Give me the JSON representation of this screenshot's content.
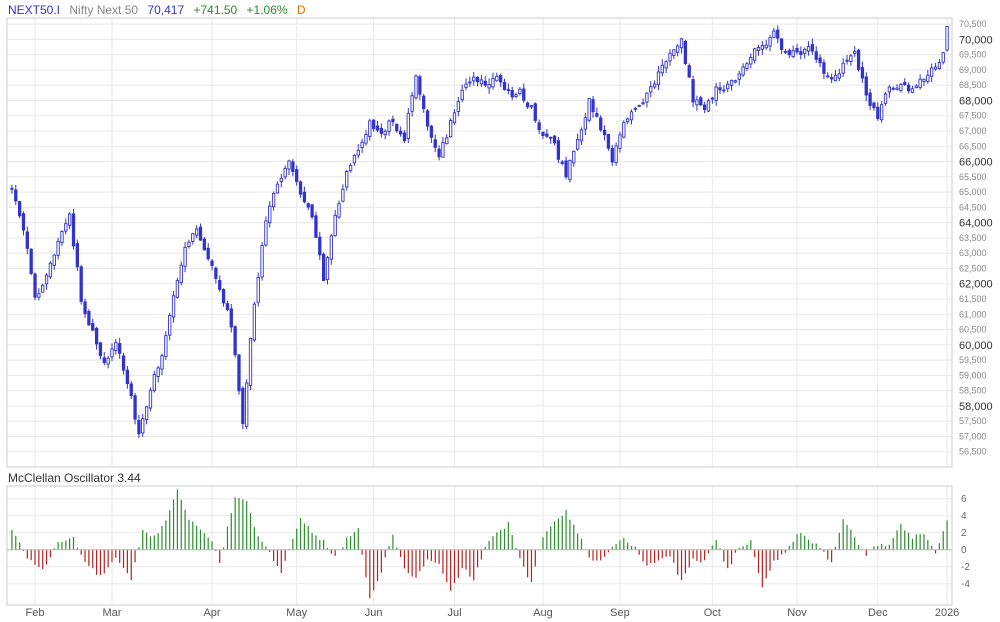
{
  "header": {
    "symbol": "NEXT50.I",
    "name": "Nifty Next 50",
    "last": "70,417",
    "change": "+741.50",
    "change_pct": "+1.06%",
    "period": "D"
  },
  "indicator": {
    "label": "McClellan Oscillator 3.44"
  },
  "colors": {
    "candle": "#3333cc",
    "positive": "#2e8b2e",
    "negative": "#b22222",
    "grid": "#e8e8e8",
    "axis_text": "#666666",
    "symbol": "#3333cc",
    "change": "#2e8b2e",
    "period": "#e07000"
  },
  "chart_data": [
    {
      "type": "candlestick",
      "ylim": [
        56000,
        70700
      ],
      "y_ticks_major": [
        58000,
        60000,
        62000,
        64000,
        66000,
        68000,
        70000
      ],
      "y_ticks_minor": [
        56500,
        57000,
        57500,
        58500,
        59000,
        59500,
        60500,
        61000,
        61500,
        62500,
        63000,
        63500,
        64500,
        65000,
        65500,
        66500,
        67000,
        67500,
        68500,
        69000,
        69500,
        70500
      ],
      "x_labels": [
        "Feb",
        "Mar",
        "Apr",
        "May",
        "Jun",
        "Jul",
        "Aug",
        "Sep",
        "Oct",
        "Nov",
        "Dec",
        "2026"
      ],
      "close_path": [
        [
          0,
          65200
        ],
        [
          3,
          63800
        ],
        [
          6,
          61500
        ],
        [
          9,
          62300
        ],
        [
          12,
          63400
        ],
        [
          15,
          64300
        ],
        [
          18,
          61500
        ],
        [
          21,
          60400
        ],
        [
          24,
          59300
        ],
        [
          27,
          60100
        ],
        [
          30,
          58800
        ],
        [
          33,
          57100
        ],
        [
          36,
          58600
        ],
        [
          39,
          59700
        ],
        [
          42,
          61600
        ],
        [
          45,
          63300
        ],
        [
          48,
          63800
        ],
        [
          51,
          62900
        ],
        [
          54,
          61900
        ],
        [
          57,
          60600
        ],
        [
          60,
          57500
        ],
        [
          63,
          61400
        ],
        [
          66,
          64000
        ],
        [
          69,
          65300
        ],
        [
          72,
          66000
        ],
        [
          75,
          64900
        ],
        [
          78,
          64300
        ],
        [
          81,
          62100
        ],
        [
          84,
          64200
        ],
        [
          87,
          65700
        ],
        [
          90,
          66400
        ],
        [
          93,
          67300
        ],
        [
          96,
          67000
        ],
        [
          99,
          67300
        ],
        [
          102,
          66800
        ],
        [
          105,
          68900
        ],
        [
          108,
          67100
        ],
        [
          111,
          66100
        ],
        [
          114,
          67300
        ],
        [
          117,
          68400
        ],
        [
          120,
          68800
        ],
        [
          123,
          68500
        ],
        [
          126,
          68700
        ],
        [
          129,
          68200
        ],
        [
          132,
          68300
        ],
        [
          135,
          67700
        ],
        [
          138,
          66900
        ],
        [
          141,
          66500
        ],
        [
          144,
          65600
        ],
        [
          147,
          66600
        ],
        [
          150,
          68000
        ],
        [
          153,
          67100
        ],
        [
          156,
          66100
        ],
        [
          159,
          67200
        ],
        [
          162,
          67700
        ],
        [
          165,
          68200
        ],
        [
          168,
          68900
        ],
        [
          171,
          69600
        ],
        [
          174,
          70000
        ],
        [
          177,
          68000
        ],
        [
          180,
          67800
        ],
        [
          183,
          68400
        ],
        [
          186,
          68500
        ],
        [
          189,
          68800
        ],
        [
          192,
          69500
        ],
        [
          195,
          69800
        ],
        [
          198,
          70200
        ],
        [
          201,
          69500
        ],
        [
          204,
          69600
        ],
        [
          207,
          69700
        ],
        [
          210,
          69200
        ],
        [
          213,
          68600
        ],
        [
          216,
          69100
        ],
        [
          219,
          69600
        ],
        [
          222,
          68200
        ],
        [
          225,
          67500
        ],
        [
          228,
          68400
        ],
        [
          231,
          68600
        ],
        [
          234,
          68300
        ],
        [
          237,
          68800
        ],
        [
          240,
          69100
        ],
        [
          243,
          69600
        ]
      ],
      "last_bar": {
        "open": 69650,
        "high": 70430,
        "low": 69600,
        "close": 70417
      }
    },
    {
      "type": "bar",
      "title": "McClellan Oscillator",
      "ylim": [
        -6.5,
        7.5
      ],
      "y_ticks": [
        -4,
        -2,
        0,
        2,
        4,
        6
      ],
      "value_path": [
        [
          0,
          2.3
        ],
        [
          4,
          -0.9
        ],
        [
          8,
          -2.4
        ],
        [
          12,
          0.8
        ],
        [
          16,
          1.4
        ],
        [
          19,
          -1.5
        ],
        [
          23,
          -3.2
        ],
        [
          27,
          -1.0
        ],
        [
          31,
          -3.6
        ],
        [
          34,
          2.2
        ],
        [
          37,
          1.5
        ],
        [
          40,
          3.5
        ],
        [
          43,
          7.2
        ],
        [
          46,
          3.5
        ],
        [
          49,
          2.3
        ],
        [
          52,
          1.2
        ],
        [
          54,
          -1.8
        ],
        [
          56,
          2.8
        ],
        [
          58,
          6.2
        ],
        [
          61,
          5.5
        ],
        [
          64,
          1.5
        ],
        [
          67,
          -0.5
        ],
        [
          70,
          -2.5
        ],
        [
          72,
          0.3
        ],
        [
          75,
          3.6
        ],
        [
          78,
          2.2
        ],
        [
          81,
          1.0
        ],
        [
          84,
          -0.9
        ],
        [
          87,
          1.2
        ],
        [
          90,
          2.3
        ],
        [
          93,
          -5.8
        ],
        [
          96,
          -2.6
        ],
        [
          99,
          1.8
        ],
        [
          102,
          -2.3
        ],
        [
          105,
          -3.4
        ],
        [
          108,
          -1.2
        ],
        [
          111,
          -1.8
        ],
        [
          114,
          -5.0
        ],
        [
          117,
          -2.1
        ],
        [
          120,
          -3.5
        ],
        [
          123,
          0.3
        ],
        [
          126,
          1.9
        ],
        [
          129,
          3.1
        ],
        [
          132,
          -1.2
        ],
        [
          135,
          -4.0
        ],
        [
          138,
          1.6
        ],
        [
          141,
          3.5
        ],
        [
          144,
          4.6
        ],
        [
          147,
          2.1
        ],
        [
          150,
          -1.0
        ],
        [
          153,
          -1.4
        ],
        [
          156,
          0.5
        ],
        [
          159,
          1.2
        ],
        [
          162,
          0.4
        ],
        [
          165,
          -2.0
        ],
        [
          168,
          -1.2
        ],
        [
          171,
          -0.6
        ],
        [
          174,
          -3.8
        ],
        [
          177,
          -1.2
        ],
        [
          180,
          -1.3
        ],
        [
          183,
          1.3
        ],
        [
          186,
          -2.4
        ],
        [
          189,
          0.3
        ],
        [
          192,
          1.0
        ],
        [
          195,
          -4.3
        ],
        [
          198,
          -1.3
        ],
        [
          201,
          -0.5
        ],
        [
          204,
          2.0
        ],
        [
          207,
          1.2
        ],
        [
          210,
          0.2
        ],
        [
          213,
          -1.5
        ],
        [
          216,
          3.8
        ],
        [
          219,
          1.4
        ],
        [
          222,
          -0.5
        ],
        [
          225,
          0.6
        ],
        [
          228,
          0.5
        ],
        [
          231,
          2.9
        ],
        [
          234,
          1.5
        ],
        [
          237,
          2.0
        ],
        [
          240,
          -0.4
        ],
        [
          243,
          3.44
        ]
      ]
    }
  ]
}
